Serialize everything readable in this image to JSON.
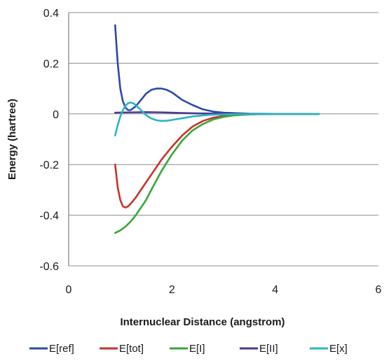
{
  "chart_data": {
    "type": "line",
    "xlabel": "Internuclear Distance (angstrom)",
    "ylabel": "Energy (hartree)",
    "xlim": [
      0,
      6
    ],
    "ylim": [
      -0.6,
      0.4
    ],
    "x_ticks": [
      "0",
      "2",
      "4",
      "6"
    ],
    "y_ticks": [
      "0.4",
      "0.2",
      "0",
      "-0.2",
      "-0.4",
      "-0.6"
    ],
    "grid": "horizontal",
    "legend_position": "bottom",
    "series": [
      {
        "name": "E[ref]",
        "color": "#2b4aa8",
        "x": [
          0.9,
          0.95,
          1.0,
          1.05,
          1.1,
          1.15,
          1.2,
          1.3,
          1.4,
          1.5,
          1.6,
          1.7,
          1.8,
          1.9,
          2.0,
          2.1,
          2.2,
          2.4,
          2.6,
          2.8,
          3.0,
          3.2,
          3.5,
          4.0,
          4.5,
          4.85
        ],
        "y": [
          0.35,
          0.2,
          0.1,
          0.05,
          0.025,
          0.015,
          0.015,
          0.03,
          0.055,
          0.08,
          0.095,
          0.1,
          0.1,
          0.095,
          0.085,
          0.07,
          0.055,
          0.035,
          0.018,
          0.009,
          0.005,
          0.003,
          0.001,
          0.0,
          0.0,
          0.0
        ]
      },
      {
        "name": "E[tot]",
        "color": "#c8322a",
        "x": [
          0.9,
          0.95,
          1.0,
          1.05,
          1.1,
          1.15,
          1.2,
          1.3,
          1.4,
          1.5,
          1.6,
          1.8,
          2.0,
          2.2,
          2.4,
          2.6,
          2.8,
          3.0,
          3.2,
          3.5,
          4.0,
          4.5,
          4.85
        ],
        "y": [
          -0.2,
          -0.29,
          -0.34,
          -0.365,
          -0.37,
          -0.365,
          -0.355,
          -0.33,
          -0.3,
          -0.27,
          -0.24,
          -0.18,
          -0.13,
          -0.085,
          -0.05,
          -0.028,
          -0.015,
          -0.008,
          -0.004,
          -0.001,
          0.0,
          0.0,
          0.0
        ]
      },
      {
        "name": "E[I]",
        "color": "#3aa53a",
        "x": [
          0.9,
          1.0,
          1.1,
          1.2,
          1.3,
          1.4,
          1.5,
          1.6,
          1.8,
          2.0,
          2.2,
          2.4,
          2.6,
          2.8,
          3.0,
          3.2,
          3.5,
          4.0,
          4.5,
          4.85
        ],
        "y": [
          -0.47,
          -0.46,
          -0.445,
          -0.425,
          -0.4,
          -0.37,
          -0.34,
          -0.3,
          -0.225,
          -0.16,
          -0.105,
          -0.065,
          -0.04,
          -0.022,
          -0.012,
          -0.006,
          -0.002,
          0.0,
          0.0,
          0.0
        ]
      },
      {
        "name": "E[II]",
        "color": "#4b3a8c",
        "x": [
          0.9,
          1.2,
          1.5,
          1.8,
          2.1,
          2.5,
          3.0,
          3.5,
          4.0,
          4.5,
          4.85
        ],
        "y": [
          0.005,
          0.006,
          0.007,
          0.006,
          0.004,
          0.002,
          0.001,
          0.0,
          0.0,
          0.0,
          0.0
        ]
      },
      {
        "name": "E[x]",
        "color": "#2bb3c6",
        "x": [
          0.9,
          0.95,
          1.0,
          1.05,
          1.1,
          1.15,
          1.2,
          1.25,
          1.3,
          1.35,
          1.4,
          1.5,
          1.6,
          1.7,
          1.8,
          1.9,
          2.0,
          2.2,
          2.4,
          2.6,
          2.8,
          3.0,
          3.5,
          4.0,
          4.85
        ],
        "y": [
          -0.085,
          -0.045,
          -0.01,
          0.015,
          0.032,
          0.042,
          0.045,
          0.042,
          0.035,
          0.025,
          0.015,
          -0.005,
          -0.018,
          -0.025,
          -0.028,
          -0.027,
          -0.024,
          -0.017,
          -0.01,
          -0.006,
          -0.003,
          -0.002,
          0.0,
          0.0,
          0.0
        ]
      }
    ]
  }
}
